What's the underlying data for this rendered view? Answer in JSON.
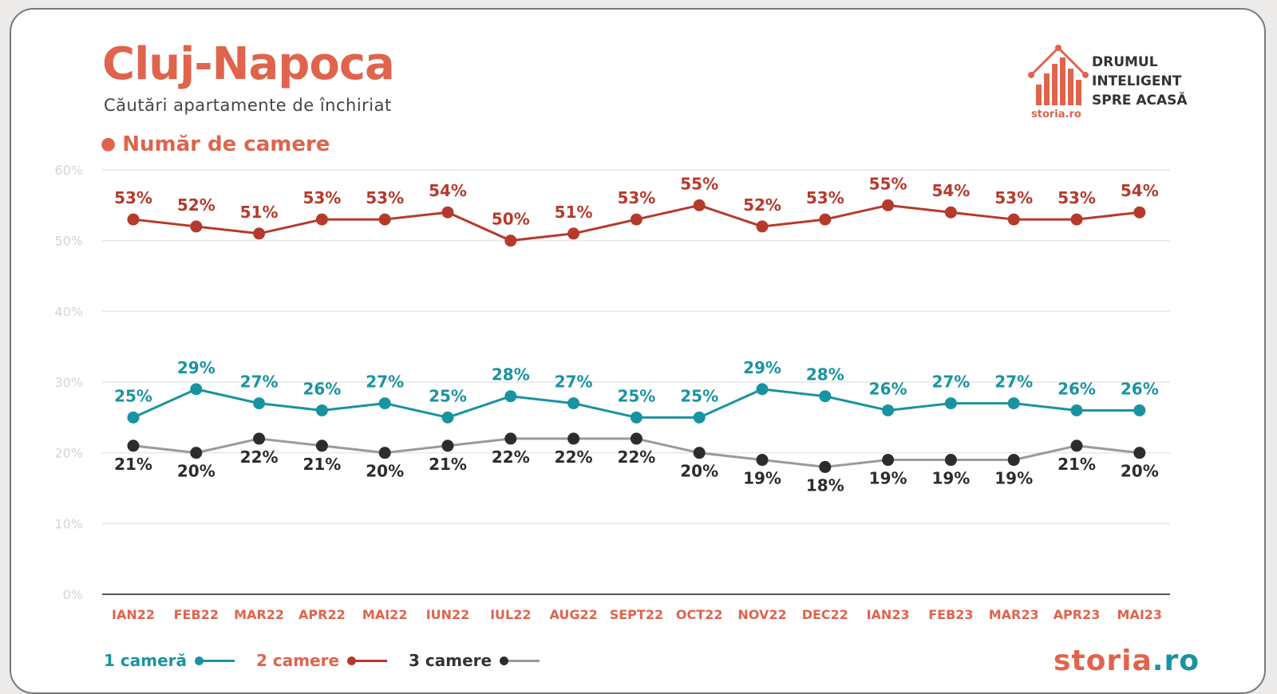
{
  "header": {
    "title": "Cluj-Napoca",
    "subtitle": "Căutări apartamente de închiriat",
    "section": "Număr de camere"
  },
  "brand": {
    "line1": "DRUMUL",
    "line2": "INTELIGENT",
    "line3": "SPRE ACASĂ",
    "site": "storia.ro",
    "footer_main": "storia",
    "footer_tld": ".ro"
  },
  "colors": {
    "accent": "#e0644c",
    "one_room": "#1a93a1",
    "two_rooms": "#b63a2c",
    "three_rooms_line": "#9a9a9a",
    "three_rooms_point": "#2c2c2c",
    "grid": "#e6e6e6",
    "axis": "#555555"
  },
  "legend": [
    {
      "label": "1 cameră",
      "color": "#1a93a1"
    },
    {
      "label": "2 camere",
      "color": "#b63a2c"
    },
    {
      "label": "3 camere",
      "color": "#2c2c2c"
    }
  ],
  "chart_data": {
    "type": "line",
    "title": "Număr de camere",
    "xlabel": "",
    "ylabel": "",
    "ylim": [
      0,
      60
    ],
    "yticks": [
      "0%",
      "10%",
      "20%",
      "30%",
      "40%",
      "50%",
      "60%"
    ],
    "grid": true,
    "categories": [
      "IAN22",
      "FEB22",
      "MAR22",
      "APR22",
      "MAI22",
      "IUN22",
      "IUL22",
      "AUG22",
      "SEPT22",
      "OCT22",
      "NOV22",
      "DEC22",
      "IAN23",
      "FEB23",
      "MAR23",
      "APR23",
      "MAI23"
    ],
    "series": [
      {
        "name": "1 cameră",
        "values": [
          25,
          29,
          27,
          26,
          27,
          25,
          28,
          27,
          25,
          25,
          29,
          28,
          26,
          27,
          27,
          26,
          26
        ]
      },
      {
        "name": "2 camere",
        "values": [
          53,
          52,
          51,
          53,
          53,
          54,
          50,
          51,
          53,
          55,
          52,
          53,
          55,
          54,
          53,
          53,
          54
        ]
      },
      {
        "name": "3 camere",
        "values": [
          21,
          20,
          22,
          21,
          20,
          21,
          22,
          22,
          22,
          20,
          19,
          18,
          19,
          19,
          19,
          21,
          20
        ]
      }
    ],
    "legend_position": "bottom-left"
  }
}
